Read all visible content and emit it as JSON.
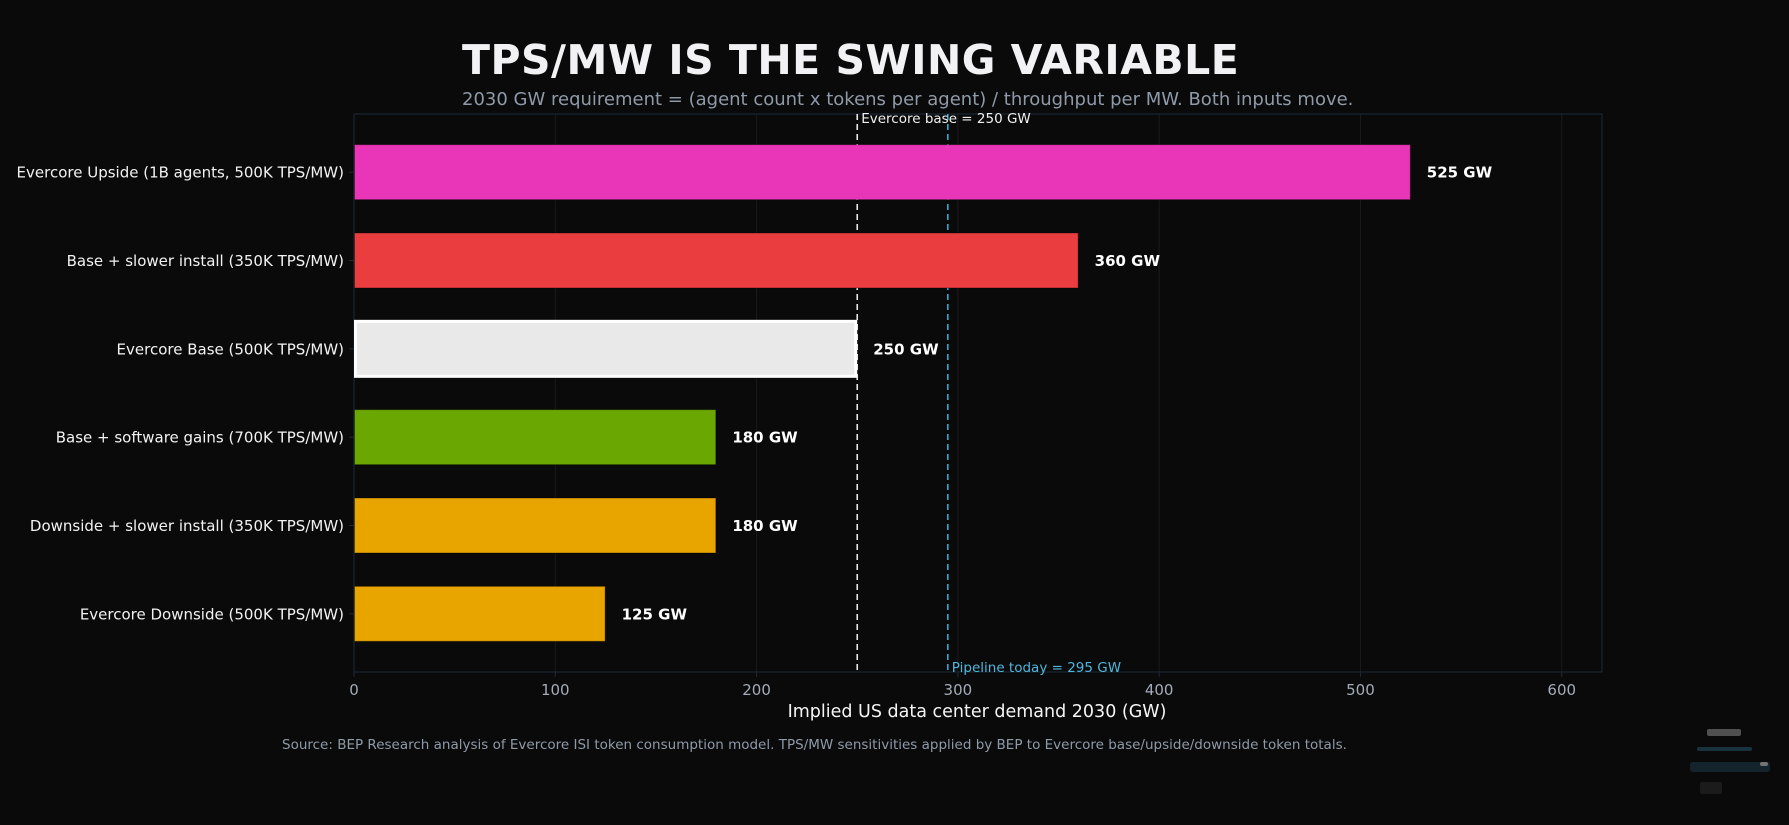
{
  "chart_data": {
    "type": "bar",
    "orientation": "horizontal",
    "title": "TPS/MW IS THE SWING VARIABLE",
    "subtitle": "2030 GW requirement = (agent count x tokens per agent) / throughput per MW. Both inputs move.",
    "xlabel": "Implied US data center demand 2030 (GW)",
    "ylabel": "",
    "xlim": [
      0,
      620
    ],
    "x_ticks": [
      0,
      100,
      200,
      300,
      400,
      500,
      600
    ],
    "grid": "vertical",
    "categories": [
      "Evercore Upside (1B agents, 500K TPS/MW)",
      "Base + slower install (350K TPS/MW)",
      "Evercore Base (500K TPS/MW)",
      "Base + software gains (700K TPS/MW)",
      "Downside + slower install (350K TPS/MW)",
      "Evercore Downside (500K TPS/MW)"
    ],
    "values": [
      525,
      360,
      250,
      180,
      180,
      125
    ],
    "value_labels": [
      "525 GW",
      "360 GW",
      "250 GW",
      "180 GW",
      "180 GW",
      "125 GW"
    ],
    "colors": [
      "#e936b8",
      "#ea3d40",
      "#e9e9e9",
      "#6ba702",
      "#e8a500",
      "#e8a500"
    ],
    "highlighted_index": 2,
    "reference_lines": [
      {
        "value": 250,
        "label": "Evercore base = 250 GW",
        "color": "#e6e6e6",
        "label_position": "top"
      },
      {
        "value": 295,
        "label": "Pipeline today = 295 GW",
        "color": "#3aa6d4",
        "label_position": "bottom"
      }
    ],
    "source": "Source: BEP Research analysis of Evercore ISI token consumption model. TPS/MW sensitivities applied by BEP to Evercore base/upside/downside token totals."
  }
}
